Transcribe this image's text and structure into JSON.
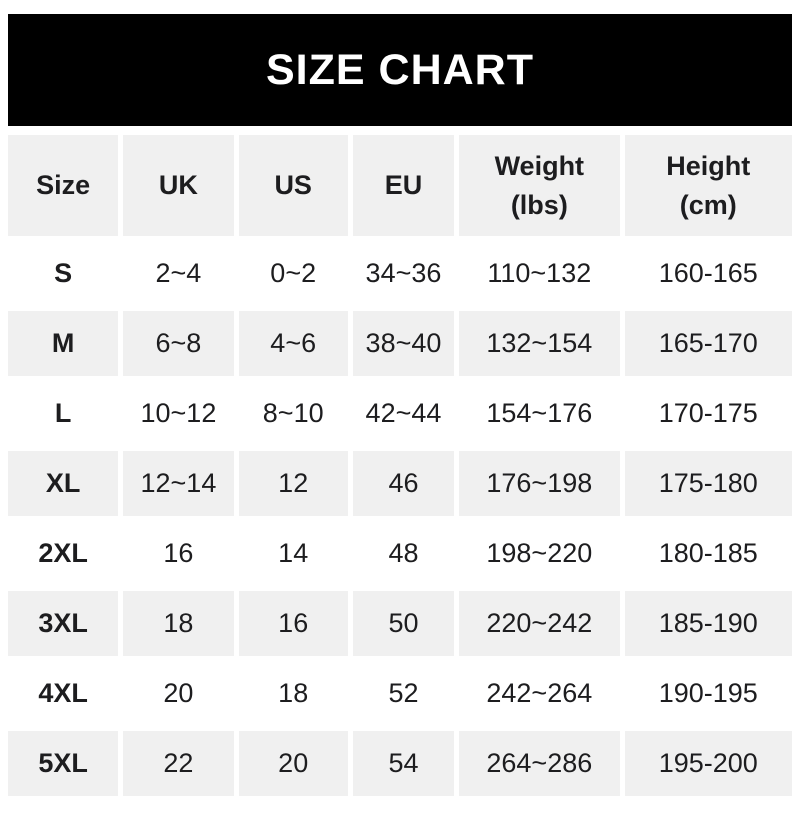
{
  "banner": {
    "title": "SIZE CHART",
    "bg_color": "#000000",
    "text_color": "#ffffff"
  },
  "table": {
    "headers": [
      {
        "key": "size",
        "lines": [
          "Size"
        ]
      },
      {
        "key": "uk",
        "lines": [
          "UK"
        ]
      },
      {
        "key": "us",
        "lines": [
          "US"
        ]
      },
      {
        "key": "eu",
        "lines": [
          "EU"
        ]
      },
      {
        "key": "weight-lbs",
        "lines": [
          "Weight",
          "(lbs)"
        ]
      },
      {
        "key": "height-cm",
        "lines": [
          "Height",
          "(cm)"
        ]
      }
    ],
    "alt_row_bg": "#f0f0f0",
    "text_color": "#1d1d1f"
  },
  "chart_data": {
    "type": "table",
    "title": "SIZE CHART",
    "columns": [
      "Size",
      "UK",
      "US",
      "EU",
      "Weight (lbs)",
      "Height (cm)"
    ],
    "rows": [
      [
        "S",
        "2~4",
        "0~2",
        "34~36",
        "110~132",
        "160-165"
      ],
      [
        "M",
        "6~8",
        "4~6",
        "38~40",
        "132~154",
        "165-170"
      ],
      [
        "L",
        "10~12",
        "8~10",
        "42~44",
        "154~176",
        "170-175"
      ],
      [
        "XL",
        "12~14",
        "12",
        "46",
        "176~198",
        "175-180"
      ],
      [
        "2XL",
        "16",
        "14",
        "48",
        "198~220",
        "180-185"
      ],
      [
        "3XL",
        "18",
        "16",
        "50",
        "220~242",
        "185-190"
      ],
      [
        "4XL",
        "20",
        "18",
        "52",
        "242~264",
        "190-195"
      ],
      [
        "5XL",
        "22",
        "20",
        "54",
        "264~286",
        "195-200"
      ]
    ]
  }
}
